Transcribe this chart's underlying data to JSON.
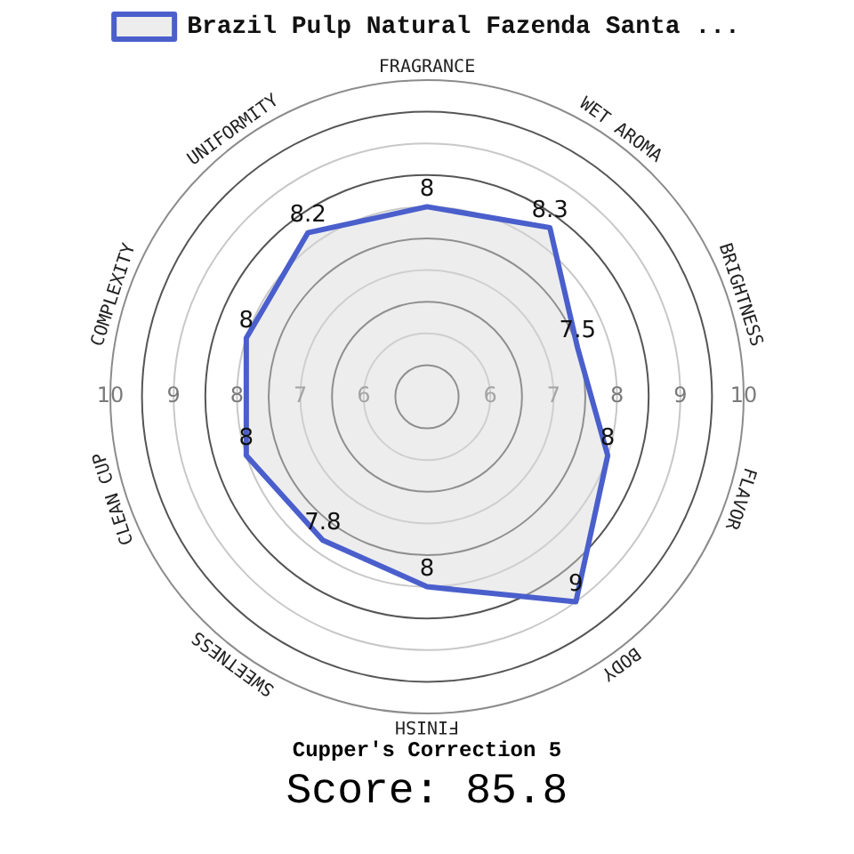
{
  "chart_data": {
    "type": "radar",
    "categories": [
      "FRAGRANCE",
      "WET AROMA",
      "BRIGHTNESS",
      "FLAVOR",
      "BODY",
      "FINISH",
      "SWEETNESS",
      "CLEAN CUP",
      "COMPLEXITY",
      "UNIFORMITY"
    ],
    "series": [
      {
        "name": "Brazil Pulp Natural Fazenda Santa ...",
        "color": "#4a5fcc",
        "values": [
          8,
          8.3,
          7.5,
          8,
          9,
          8,
          7.8,
          8,
          8,
          8.2
        ]
      }
    ],
    "ylim": [
      5,
      10
    ],
    "yticks": [
      10,
      9,
      8,
      7,
      6,
      6,
      7,
      8,
      9,
      10
    ],
    "grid": true,
    "legend": "top",
    "data_labels": true,
    "annotations": [
      "Cupper's Correction 5",
      "Score: 85.8"
    ]
  }
}
